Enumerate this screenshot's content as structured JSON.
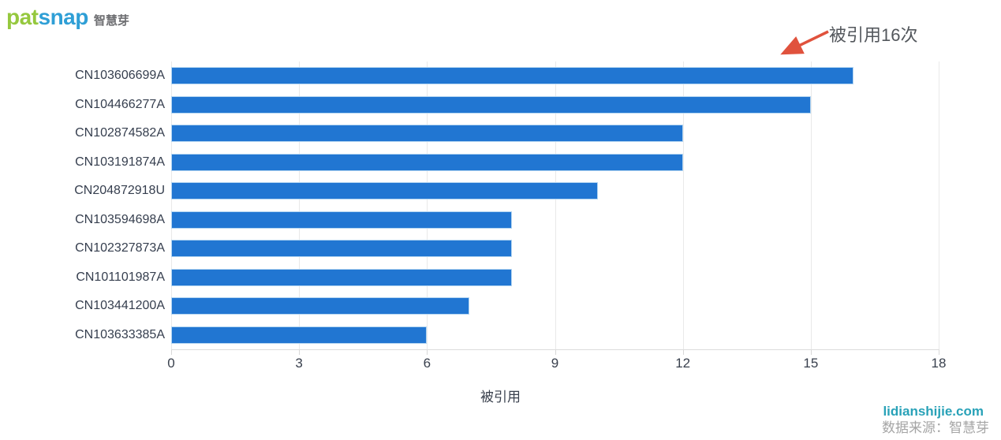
{
  "logo": {
    "brand_part1": "pat",
    "brand_part2": "snap",
    "brand_cn": "智慧芽"
  },
  "annotation": {
    "text": "被引用16次"
  },
  "chart_data": {
    "type": "bar",
    "orientation": "horizontal",
    "title": "",
    "categories": [
      "CN103606699A",
      "CN104466277A",
      "CN102874582A",
      "CN103191874A",
      "CN204872918U",
      "CN103594698A",
      "CN102327873A",
      "CN101101987A",
      "CN103441200A",
      "CN103633385A"
    ],
    "values": [
      16,
      15,
      12,
      12,
      10,
      8,
      8,
      8,
      7,
      6
    ],
    "xlabel": "被引用",
    "ylabel": "",
    "xlim": [
      0,
      18
    ],
    "xticks": [
      0,
      3,
      6,
      9,
      12,
      15,
      18
    ],
    "grid": "vertical",
    "legend": "none",
    "annotation": "被引用16次",
    "bar_color": "#2176d2",
    "bar_border_color": "#b3d5f1"
  },
  "watermark": {
    "site": "lidianshijie.com",
    "source": "数据来源：智慧芽"
  },
  "colors": {
    "bar": "#2176d2",
    "bar_border": "#b3d5f1",
    "gridline": "#e9e9e9",
    "axis_line": "#dcdcdc",
    "tick_text": "#39404d",
    "annotation_text": "#53575c",
    "arrow": "#e0523d",
    "logo_green": "#95c83e",
    "logo_blue": "#2f9fd6",
    "logo_gray": "#6d6e71",
    "watermark_site": "#29a2b8",
    "watermark_source": "#a5a5a5"
  }
}
